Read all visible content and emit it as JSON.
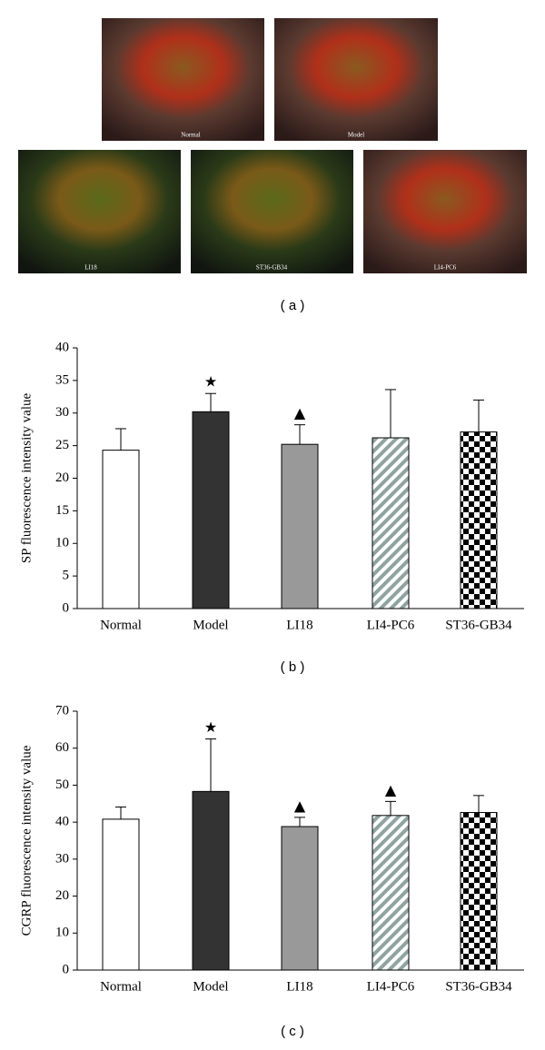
{
  "images": {
    "labels": [
      "Normal",
      "Model",
      "LI18",
      "ST36-GB34",
      "LI4-PC6"
    ],
    "caption": "( a )"
  },
  "chart_data": [
    {
      "type": "bar",
      "caption": "( b )",
      "y_label": "SP fluorescence intensity value",
      "categories": [
        "Normal",
        "Model",
        "LI18",
        "LI4-PC6",
        "ST36-GB34"
      ],
      "values": [
        24.3,
        30.2,
        25.2,
        26.2,
        27.1
      ],
      "errors": [
        3.3,
        2.8,
        3.0,
        7.4,
        4.9
      ],
      "annotations": [
        null,
        "★",
        "▲",
        null,
        null
      ],
      "fills": [
        "#ffffff",
        "#333333",
        "#999999",
        "url(#hatch)",
        "url(#checker)"
      ],
      "ylim": [
        0,
        40
      ],
      "yticks": [
        0,
        5,
        10,
        15,
        20,
        25,
        30,
        35,
        40
      ]
    },
    {
      "type": "bar",
      "caption": "( c )",
      "y_label": "CGRP fluorescence intensity value",
      "categories": [
        "Normal",
        "Model",
        "LI18",
        "LI4-PC6",
        "ST36-GB34"
      ],
      "values": [
        40.8,
        48.3,
        38.8,
        41.8,
        42.6
      ],
      "errors": [
        3.3,
        14.2,
        2.5,
        3.8,
        4.6
      ],
      "annotations": [
        null,
        "★",
        "▲",
        "▲",
        null
      ],
      "fills": [
        "#ffffff",
        "#333333",
        "#999999",
        "url(#hatch)",
        "url(#checker)"
      ],
      "ylim": [
        0,
        70
      ],
      "yticks": [
        0,
        10,
        20,
        30,
        40,
        50,
        60,
        70
      ]
    }
  ]
}
